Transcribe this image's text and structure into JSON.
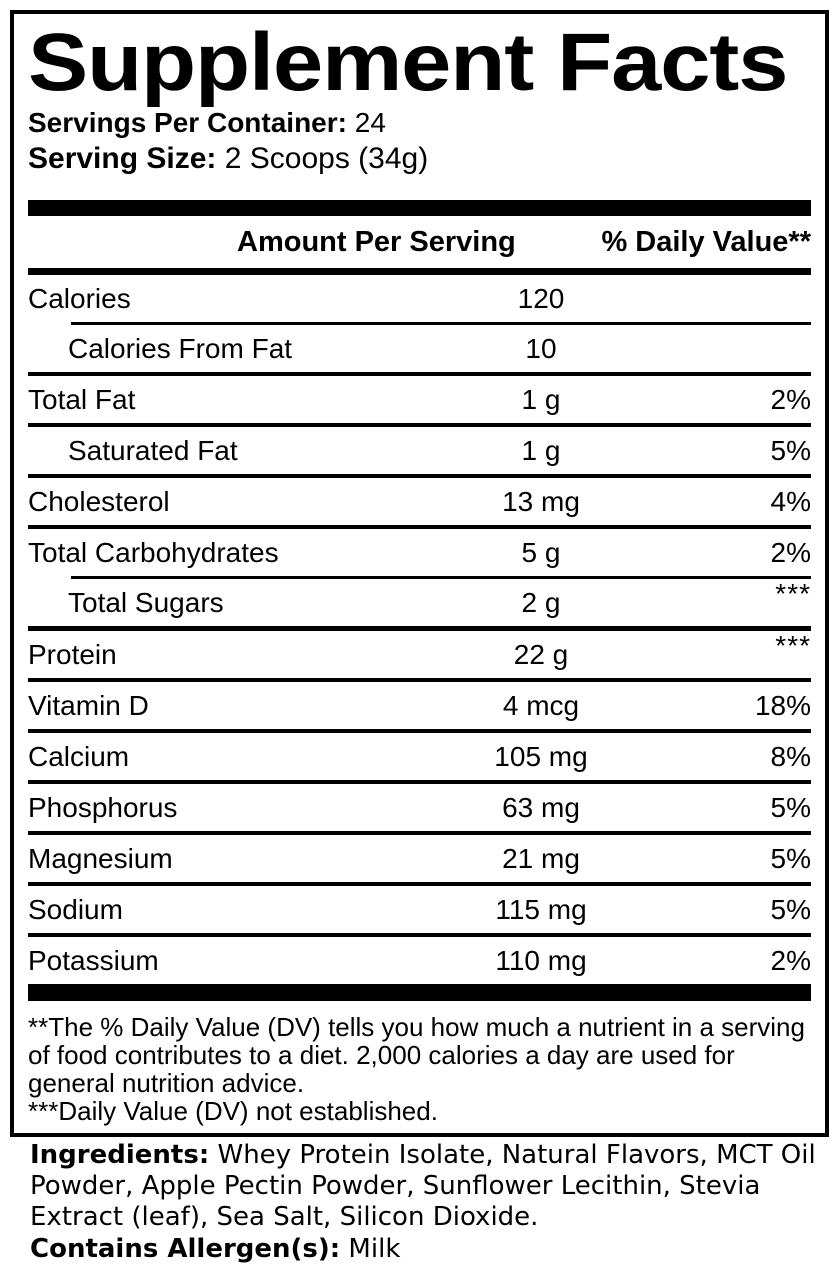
{
  "title": "Supplement Facts",
  "servings_per_container": {
    "label": "Servings Per Container:",
    "value": "24"
  },
  "serving_size": {
    "label": "Serving Size:",
    "value": "2 Scoops (34g)"
  },
  "table": {
    "headers": {
      "amount": "Amount Per Serving",
      "daily_value": "% Daily Value**"
    },
    "rows": [
      {
        "name": "Calories",
        "amount": "120",
        "dv": "",
        "sub": false,
        "divider": "none",
        "dv_raised": false
      },
      {
        "name": "Calories From Fat",
        "amount": "10",
        "dv": "",
        "sub": true,
        "divider": "indent",
        "dv_raised": false
      },
      {
        "name": "Total Fat",
        "amount": "1 g",
        "dv": "2%",
        "sub": false,
        "divider": "normal",
        "dv_raised": false
      },
      {
        "name": "Saturated Fat",
        "amount": "1 g",
        "dv": "5%",
        "sub": true,
        "divider": "normal",
        "dv_raised": false
      },
      {
        "name": "Cholesterol",
        "amount": "13 mg",
        "dv": "4%",
        "sub": false,
        "divider": "normal",
        "dv_raised": false
      },
      {
        "name": "Total Carbohydrates",
        "amount": "5 g",
        "dv": "2%",
        "sub": false,
        "divider": "normal",
        "dv_raised": false
      },
      {
        "name": "Total Sugars",
        "amount": "2 g",
        "dv": "***",
        "sub": true,
        "divider": "indent",
        "dv_raised": true
      },
      {
        "name": "Protein",
        "amount": "22 g",
        "dv": "***",
        "sub": false,
        "divider": "heavy",
        "dv_raised": true
      },
      {
        "name": "Vitamin D",
        "amount": "4 mcg",
        "dv": "18%",
        "sub": false,
        "divider": "normal",
        "dv_raised": false
      },
      {
        "name": "Calcium",
        "amount": "105 mg",
        "dv": "8%",
        "sub": false,
        "divider": "normal",
        "dv_raised": false
      },
      {
        "name": "Phosphorus",
        "amount": "63 mg",
        "dv": "5%",
        "sub": false,
        "divider": "normal",
        "dv_raised": false
      },
      {
        "name": "Magnesium",
        "amount": "21 mg",
        "dv": "5%",
        "sub": false,
        "divider": "normal",
        "dv_raised": false
      },
      {
        "name": "Sodium",
        "amount": "115 mg",
        "dv": "5%",
        "sub": false,
        "divider": "normal",
        "dv_raised": false
      },
      {
        "name": "Potassium",
        "amount": "110 mg",
        "dv": "2%",
        "sub": false,
        "divider": "normal",
        "dv_raised": false
      }
    ]
  },
  "footnotes": [
    "**The % Daily Value (DV) tells you how much a nutrient in a serving of food contributes to a diet. 2,000 calories a day are used for general nutrition advice.",
    "***Daily Value (DV) not established."
  ],
  "ingredients": {
    "label": "Ingredients:",
    "text": " Whey Protein Isolate, Natural Flavors, MCT Oil Powder, Apple Pectin Powder, Sunflower Lecithin, Stevia Extract (leaf), Sea Salt, Silicon Dioxide."
  },
  "allergens": {
    "label": "Contains Allergen(s):",
    "value": " Milk"
  },
  "colors": {
    "text": "#000000",
    "background": "#ffffff",
    "rule": "#000000"
  }
}
